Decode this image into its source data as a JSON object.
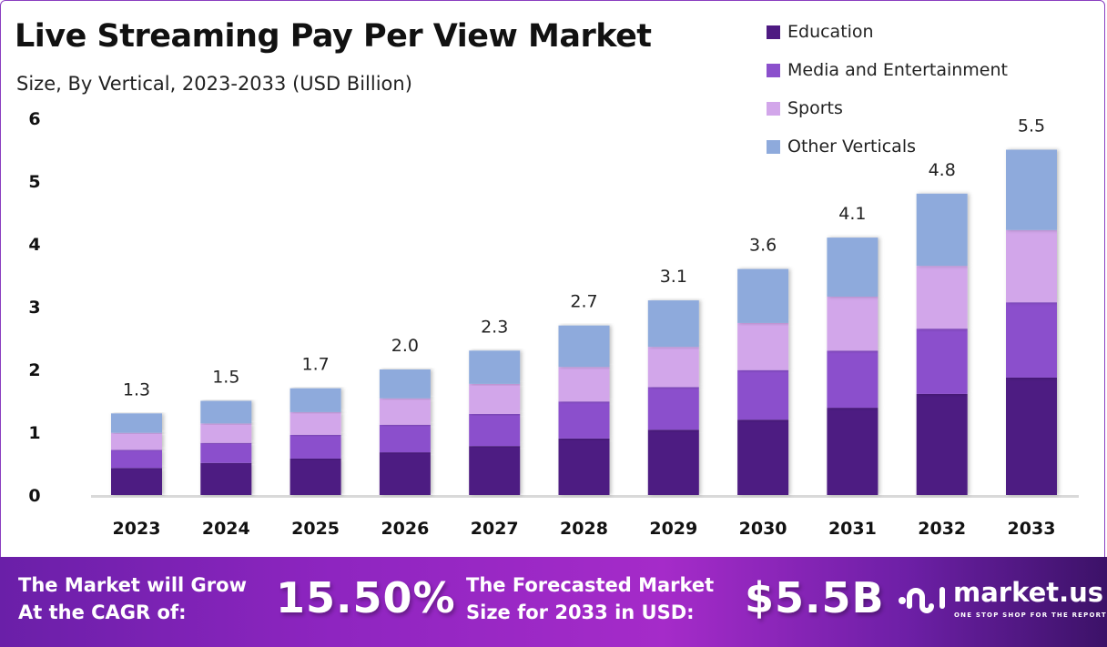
{
  "chart_data": {
    "type": "bar",
    "stacked": true,
    "title": "Live Streaming Pay Per View Market",
    "subtitle": "Size, By Vertical, 2023-2033 (USD Billion)",
    "categories": [
      "2023",
      "2024",
      "2025",
      "2026",
      "2027",
      "2028",
      "2029",
      "2030",
      "2031",
      "2032",
      "2033"
    ],
    "series": [
      {
        "name": "Education",
        "color": "#4e1a82",
        "values": [
          0.43,
          0.51,
          0.58,
          0.68,
          0.78,
          0.9,
          1.04,
          1.2,
          1.39,
          1.61,
          1.87
        ]
      },
      {
        "name": "Media and Entertainment",
        "color": "#8b50cc",
        "values": [
          0.29,
          0.32,
          0.38,
          0.44,
          0.51,
          0.59,
          0.68,
          0.79,
          0.91,
          1.04,
          1.2
        ]
      },
      {
        "name": "Sports",
        "color": "#d2a6ea",
        "values": [
          0.27,
          0.31,
          0.36,
          0.42,
          0.48,
          0.55,
          0.64,
          0.75,
          0.86,
          1.0,
          1.15
        ]
      },
      {
        "name": "Other Verticals",
        "color": "#8eaadc",
        "values": [
          0.31,
          0.36,
          0.38,
          0.46,
          0.53,
          0.66,
          0.74,
          0.86,
          0.94,
          1.15,
          1.28
        ]
      }
    ],
    "totals": [
      "1.3",
      "1.5",
      "1.7",
      "2.0",
      "2.3",
      "2.7",
      "3.1",
      "3.6",
      "4.1",
      "4.8",
      "5.5"
    ],
    "yticks": [
      "0",
      "1",
      "2",
      "3",
      "4",
      "5",
      "6"
    ],
    "ylim": [
      0,
      6
    ],
    "grid": false,
    "legend_position": "top-right"
  },
  "footer": {
    "cagr_label_1": "The Market will Grow",
    "cagr_label_2": "At the CAGR of:",
    "cagr_value": "15.50%",
    "forecast_label_1": "The Forecasted Market",
    "forecast_label_2": "Size for 2033 in USD:",
    "forecast_value": "$5.5B",
    "logo_name": "market.us",
    "logo_tagline": "ONE STOP SHOP FOR THE REPORTS"
  }
}
